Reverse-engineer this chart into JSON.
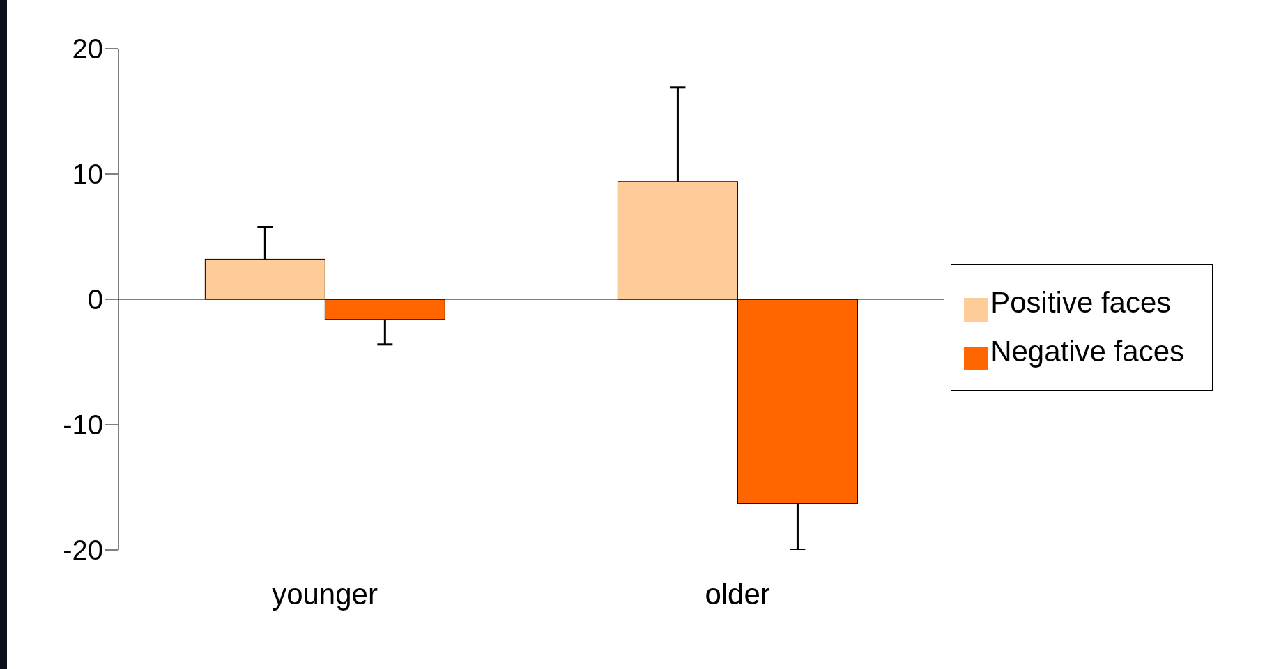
{
  "chart_data": {
    "type": "bar",
    "categories": [
      "younger",
      "older"
    ],
    "series": [
      {
        "name": "Positive faces",
        "color": "#ffcc99",
        "values": [
          3.2,
          9.4
        ],
        "errors": [
          [
            3.2,
            5.8
          ],
          [
            9.4,
            16.9
          ]
        ]
      },
      {
        "name": "Negative faces",
        "color": "#ff6600",
        "values": [
          -1.6,
          -16.3
        ],
        "errors": [
          [
            -3.6,
            -1.6
          ],
          [
            -20,
            -16.3
          ]
        ]
      }
    ],
    "ylim": [
      -20,
      20
    ],
    "yticks": [
      -20,
      -10,
      0,
      10,
      20
    ],
    "ref_lines": [
      {
        "axis": "y",
        "value": 0,
        "color": "#000000"
      }
    ],
    "legend": "right"
  }
}
